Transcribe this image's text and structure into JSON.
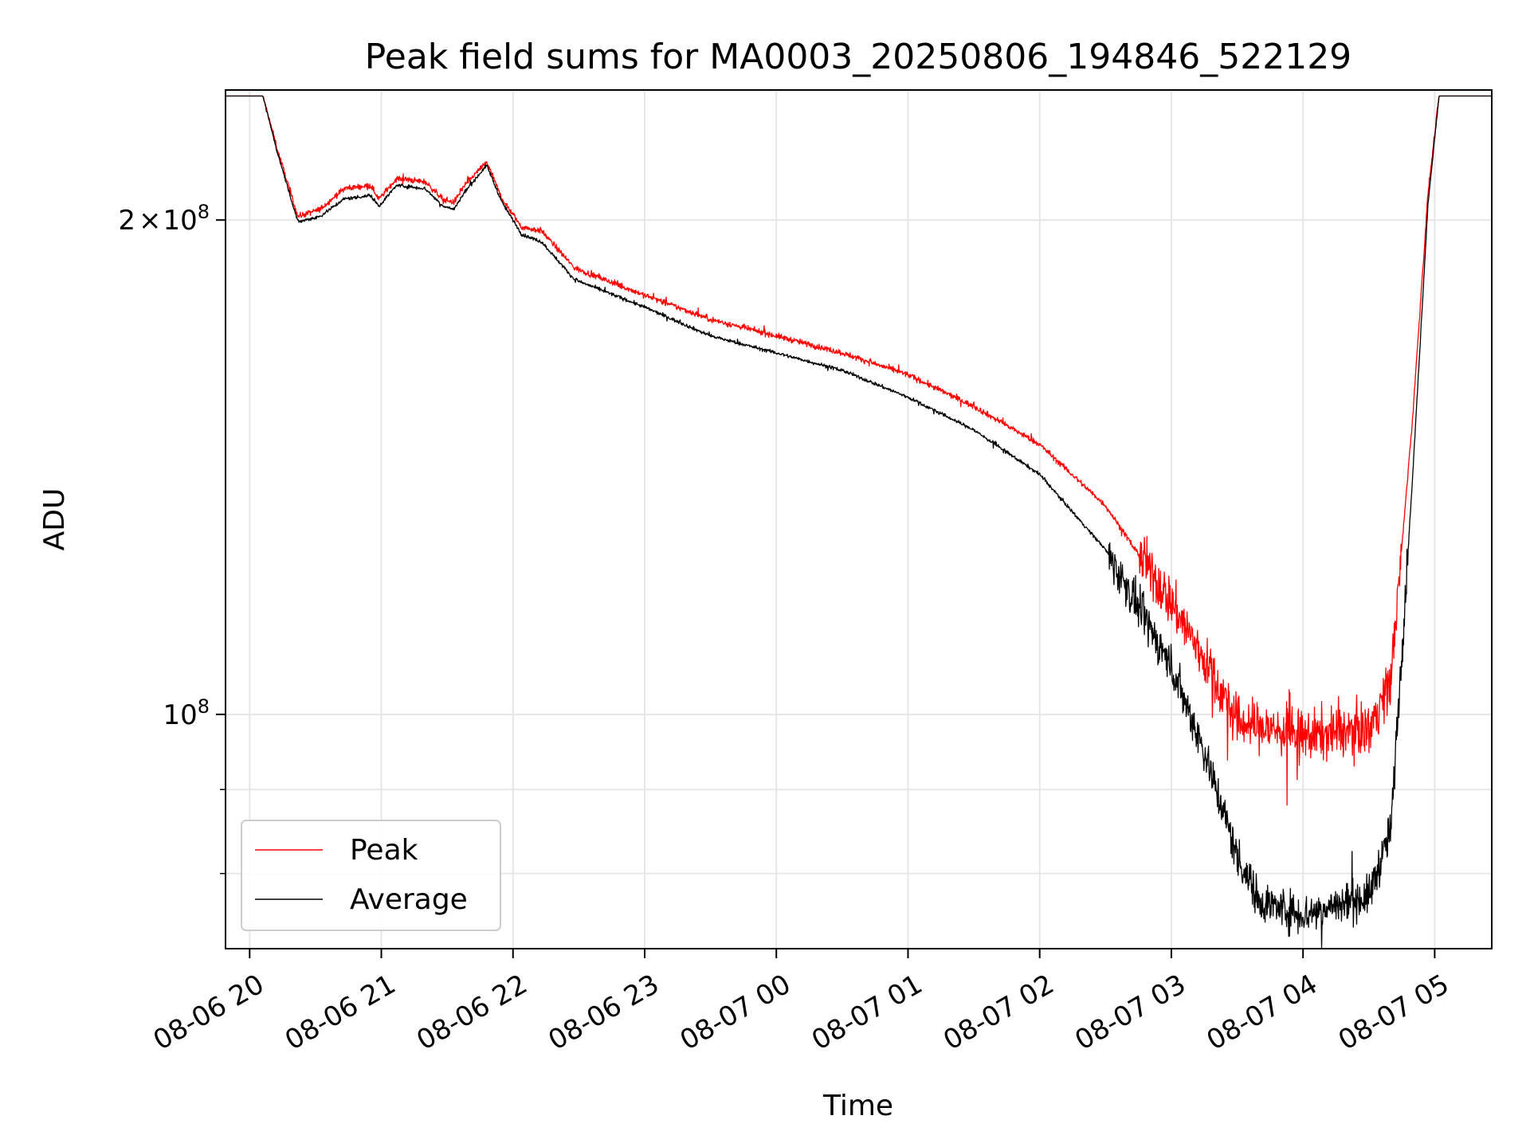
{
  "chart_data": {
    "type": "line",
    "title": "Peak field sums for MA0003_20250806_194846_522129",
    "xlabel": "Time",
    "ylabel": "ADU",
    "y_scale": "log",
    "ylim": [
      72000000,
      240000000
    ],
    "xlim": [
      "2025-08-06 19:49",
      "2025-08-07 05:26"
    ],
    "grid": true,
    "legend_position": "lower-left",
    "x_ticks": [
      {
        "t": "2025-08-06 20:00",
        "label": "08-06 20"
      },
      {
        "t": "2025-08-06 21:00",
        "label": "08-06 21"
      },
      {
        "t": "2025-08-06 22:00",
        "label": "08-06 22"
      },
      {
        "t": "2025-08-06 23:00",
        "label": "08-06 23"
      },
      {
        "t": "2025-08-07 00:00",
        "label": "08-07 00"
      },
      {
        "t": "2025-08-07 01:00",
        "label": "08-07 01"
      },
      {
        "t": "2025-08-07 02:00",
        "label": "08-07 02"
      },
      {
        "t": "2025-08-07 03:00",
        "label": "08-07 03"
      },
      {
        "t": "2025-08-07 04:00",
        "label": "08-07 04"
      },
      {
        "t": "2025-08-07 05:00",
        "label": "08-07 05"
      }
    ],
    "y_major_ticks": [
      {
        "v": 100000000,
        "base": "10",
        "exp": "8",
        "coef": ""
      },
      {
        "v": 200000000,
        "base": "10",
        "exp": "8",
        "coef": "2"
      }
    ],
    "y_minor_ticks": [
      80000000,
      90000000
    ],
    "series": [
      {
        "name": "Peak",
        "color": "#ff0000",
        "noise": 0.004,
        "noise_high": 0.035,
        "points": [
          [
            "2025-08-06 19:49",
            238000000
          ],
          [
            "2025-08-06 20:06",
            238000000
          ],
          [
            "2025-08-06 20:13",
            220000000
          ],
          [
            "2025-08-06 20:22",
            201000000
          ],
          [
            "2025-08-06 20:32",
            203000000
          ],
          [
            "2025-08-06 20:43",
            209000000
          ],
          [
            "2025-08-06 20:55",
            210000000
          ],
          [
            "2025-08-06 20:59",
            206000000
          ],
          [
            "2025-08-06 21:07",
            212000000
          ],
          [
            "2025-08-06 21:20",
            211000000
          ],
          [
            "2025-08-06 21:28",
            206000000
          ],
          [
            "2025-08-06 21:33",
            205000000
          ],
          [
            "2025-08-06 21:38",
            210000000
          ],
          [
            "2025-08-06 21:48",
            217000000
          ],
          [
            "2025-08-06 21:55",
            206000000
          ],
          [
            "2025-08-06 22:04",
            198000000
          ],
          [
            "2025-08-06 22:13",
            197000000
          ],
          [
            "2025-08-06 22:28",
            187000000
          ],
          [
            "2025-08-06 23:00",
            180000000
          ],
          [
            "2025-08-06 23:30",
            174000000
          ],
          [
            "2025-08-07 00:00",
            170000000
          ],
          [
            "2025-08-07 00:30",
            166000000
          ],
          [
            "2025-08-07 01:00",
            161000000
          ],
          [
            "2025-08-07 01:30",
            154000000
          ],
          [
            "2025-08-07 02:00",
            146000000
          ],
          [
            "2025-08-07 02:30",
            134000000
          ],
          [
            "2025-08-07 03:00",
            117000000
          ],
          [
            "2025-08-07 03:15",
            108000000
          ],
          [
            "2025-08-07 03:30",
            99000000
          ],
          [
            "2025-08-07 04:00",
            97000000
          ],
          [
            "2025-08-07 04:30",
            98000000
          ],
          [
            "2025-08-07 04:40",
            105000000
          ],
          [
            "2025-08-07 04:50",
            152000000
          ],
          [
            "2025-08-07 04:57",
            208000000
          ],
          [
            "2025-08-07 05:02",
            238000000
          ],
          [
            "2025-08-07 05:26",
            238000000
          ]
        ]
      },
      {
        "name": "Average",
        "color": "#000000",
        "noise": 0.0025,
        "noise_high": 0.028,
        "points": [
          [
            "2025-08-06 19:49",
            238000000
          ],
          [
            "2025-08-06 20:06",
            238000000
          ],
          [
            "2025-08-06 20:13",
            219000000
          ],
          [
            "2025-08-06 20:22",
            199500000
          ],
          [
            "2025-08-06 20:32",
            201000000
          ],
          [
            "2025-08-06 20:43",
            206000000
          ],
          [
            "2025-08-06 20:55",
            207000000
          ],
          [
            "2025-08-06 20:59",
            204000000
          ],
          [
            "2025-08-06 21:07",
            210000000
          ],
          [
            "2025-08-06 21:20",
            209000000
          ],
          [
            "2025-08-06 21:28",
            204000000
          ],
          [
            "2025-08-06 21:33",
            203000000
          ],
          [
            "2025-08-06 21:38",
            208000000
          ],
          [
            "2025-08-06 21:48",
            216000000
          ],
          [
            "2025-08-06 21:55",
            205000000
          ],
          [
            "2025-08-06 22:04",
            196000000
          ],
          [
            "2025-08-06 22:13",
            194000000
          ],
          [
            "2025-08-06 22:28",
            184000000
          ],
          [
            "2025-08-06 23:00",
            177000000
          ],
          [
            "2025-08-06 23:30",
            170000000
          ],
          [
            "2025-08-07 00:00",
            166000000
          ],
          [
            "2025-08-07 00:30",
            162000000
          ],
          [
            "2025-08-07 01:00",
            156000000
          ],
          [
            "2025-08-07 01:30",
            149000000
          ],
          [
            "2025-08-07 02:00",
            140000000
          ],
          [
            "2025-08-07 02:30",
            126000000
          ],
          [
            "2025-08-07 03:00",
            107000000
          ],
          [
            "2025-08-07 03:15",
            95000000
          ],
          [
            "2025-08-07 03:30",
            82000000
          ],
          [
            "2025-08-07 03:40",
            77000000
          ],
          [
            "2025-08-07 04:00",
            75500000
          ],
          [
            "2025-08-07 04:30",
            77500000
          ],
          [
            "2025-08-07 04:40",
            85000000
          ],
          [
            "2025-08-07 04:50",
            140000000
          ],
          [
            "2025-08-07 04:57",
            205000000
          ],
          [
            "2025-08-07 05:02",
            238000000
          ],
          [
            "2025-08-07 05:26",
            238000000
          ]
        ]
      }
    ]
  }
}
